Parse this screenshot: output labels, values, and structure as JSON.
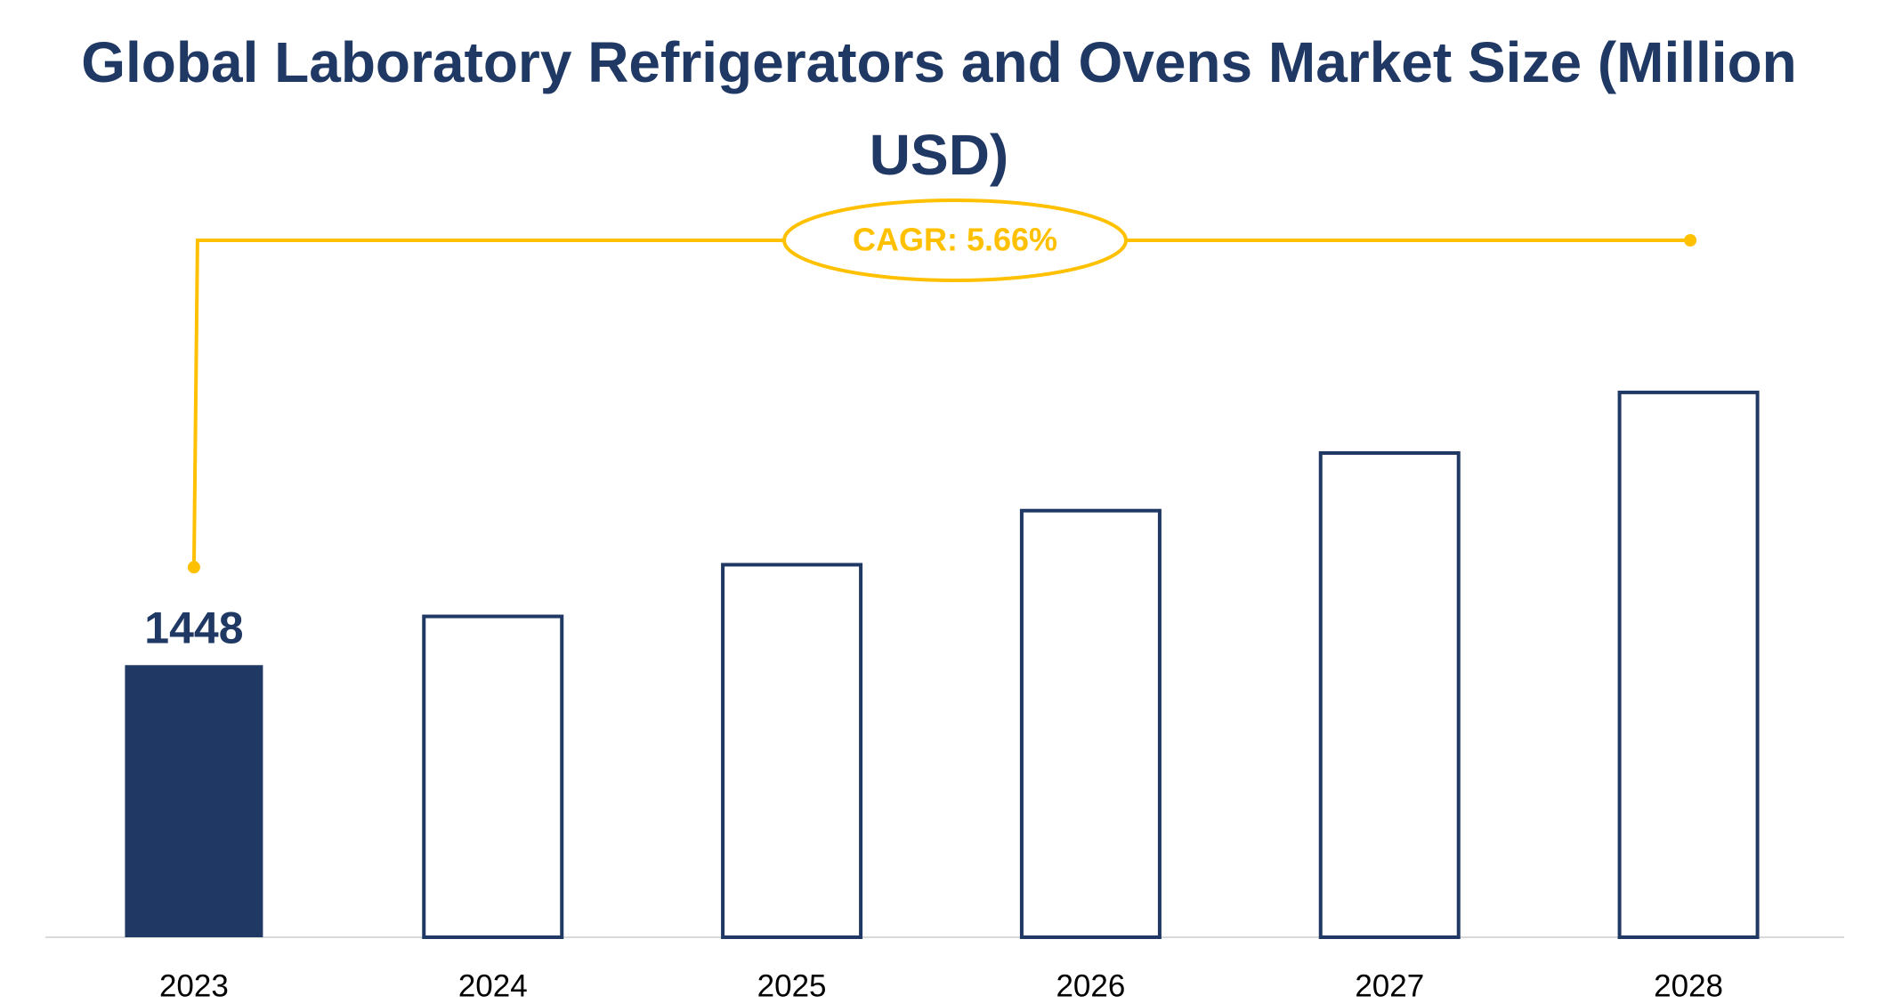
{
  "chart_data": {
    "type": "bar",
    "title": "Global Laboratory Refrigerators and Ovens Market Size (Million USD)",
    "categories": [
      "2023",
      "2024",
      "2025",
      "2026",
      "2027",
      "2028"
    ],
    "values": [
      1448,
      1530,
      1617,
      1708,
      1805,
      1907
    ],
    "fill_colors": [
      "#203864",
      "#ffffff",
      "#ffffff",
      "#ffffff",
      "#ffffff",
      "#ffffff"
    ],
    "edge_color": "#203864",
    "labeled_index": 0,
    "ylim": [
      990,
      2163
    ],
    "annotation": "CAGR: 5.66%",
    "annotation_color": "#ffc000"
  }
}
